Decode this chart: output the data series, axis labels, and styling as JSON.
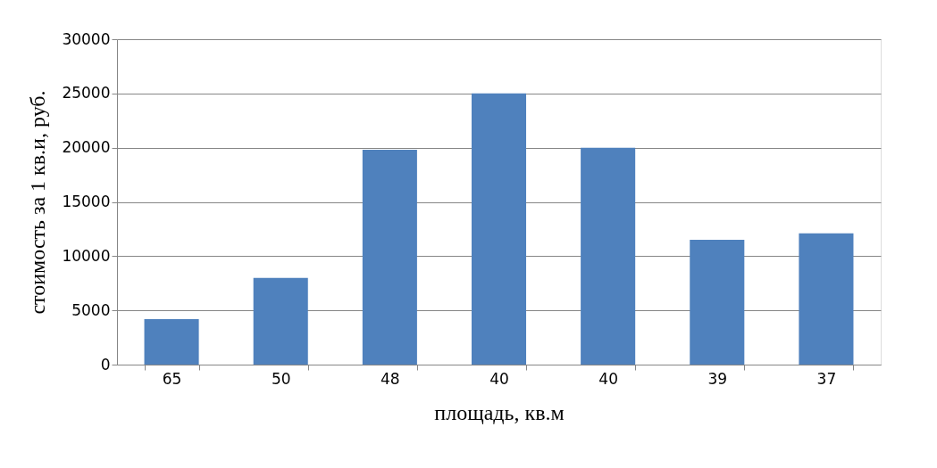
{
  "chart_data": {
    "type": "bar",
    "categories": [
      "65",
      "50",
      "48",
      "40",
      "40",
      "39",
      "37"
    ],
    "values": [
      4200,
      8000,
      19800,
      25000,
      20000,
      11500,
      12100
    ],
    "color": "#4f81bd",
    "xlabel": "площадь, кв.м",
    "ylabel": "стоимость за 1 кв.и, руб.",
    "ylim": [
      0,
      30000
    ],
    "yticks": [
      0,
      5000,
      10000,
      15000,
      20000,
      25000,
      30000
    ],
    "grid": "y"
  }
}
